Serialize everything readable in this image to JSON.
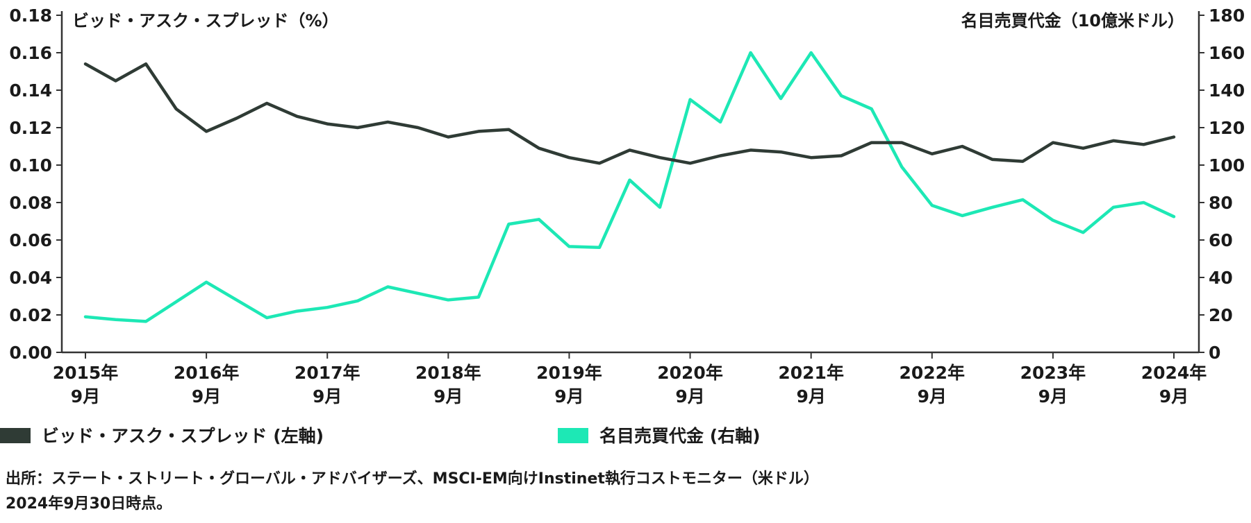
{
  "chart_data": {
    "type": "line",
    "left_axis_title": "ビッド・アスク・スプレッド（%）",
    "right_axis_title": "名目売買代金（10億米ドル）",
    "y_left_range": [
      0,
      0.18
    ],
    "y_right_range": [
      0,
      180
    ],
    "y_left_ticks": [
      "0.00",
      "0.02",
      "0.04",
      "0.06",
      "0.08",
      "0.10",
      "0.12",
      "0.14",
      "0.16",
      "0.18"
    ],
    "y_right_ticks": [
      "0",
      "20",
      "40",
      "60",
      "80",
      "100",
      "120",
      "140",
      "160",
      "180"
    ],
    "x_tick_labels": [
      {
        "year": "2015年",
        "month": "9月"
      },
      {
        "year": "2016年",
        "month": "9月"
      },
      {
        "year": "2017年",
        "month": "9月"
      },
      {
        "year": "2018年",
        "month": "9月"
      },
      {
        "year": "2019年",
        "month": "9月"
      },
      {
        "year": "2020年",
        "month": "9月"
      },
      {
        "year": "2021年",
        "month": "9月"
      },
      {
        "year": "2022年",
        "month": "9月"
      },
      {
        "year": "2023年",
        "month": "9月"
      },
      {
        "year": "2024年",
        "month": "9月"
      }
    ],
    "x_quarters": [
      "2015Q3",
      "2015Q4",
      "2016Q1",
      "2016Q2",
      "2016Q3",
      "2016Q4",
      "2017Q1",
      "2017Q2",
      "2017Q3",
      "2017Q4",
      "2018Q1",
      "2018Q2",
      "2018Q3",
      "2018Q4",
      "2019Q1",
      "2019Q2",
      "2019Q3",
      "2019Q4",
      "2020Q1",
      "2020Q2",
      "2020Q3",
      "2020Q4",
      "2021Q1",
      "2021Q2",
      "2021Q3",
      "2021Q4",
      "2022Q1",
      "2022Q2",
      "2022Q3",
      "2022Q4",
      "2023Q1",
      "2023Q2",
      "2023Q3",
      "2023Q4",
      "2024Q1",
      "2024Q2",
      "2024Q3"
    ],
    "series": [
      {
        "name": "ビッド・アスク・スプレッド (左軸)",
        "axis": "left",
        "color": "#2f3b35",
        "values": [
          0.154,
          0.145,
          0.154,
          0.13,
          0.118,
          0.125,
          0.133,
          0.126,
          0.122,
          0.12,
          0.123,
          0.12,
          0.115,
          0.118,
          0.119,
          0.109,
          0.104,
          0.101,
          0.108,
          0.104,
          0.101,
          0.105,
          0.108,
          0.107,
          0.104,
          0.105,
          0.112,
          0.112,
          0.106,
          0.11,
          0.103,
          0.102,
          0.112,
          0.109,
          0.113,
          0.111,
          0.115
        ]
      },
      {
        "name": "名目売買代金 (右軸)",
        "axis": "right",
        "color": "#1de8b5",
        "values": [
          19,
          17.5,
          16.5,
          27,
          37.5,
          28,
          18.5,
          22,
          24,
          27.5,
          35,
          31.5,
          28,
          29.5,
          68.5,
          71,
          56.5,
          56,
          92,
          77.5,
          135,
          123,
          160,
          135.5,
          160,
          137,
          130,
          99,
          78.5,
          73,
          77.5,
          81.5,
          70.5,
          64,
          77.5,
          80,
          72.5
        ]
      }
    ],
    "legend": [
      {
        "label": "ビッド・アスク・スプレッド (左軸)",
        "color": "#2f3b35"
      },
      {
        "label": "名目売買代金 (右軸)",
        "color": "#1de8b5"
      }
    ],
    "legend_position": "bottom"
  },
  "source": {
    "line1": "出所：ステート・ストリート・グローバル・アドバイザーズ、MSCI-EM向けInstinet執行コストモニター（米ドル）",
    "line2": "2024年9月30日時点。"
  }
}
